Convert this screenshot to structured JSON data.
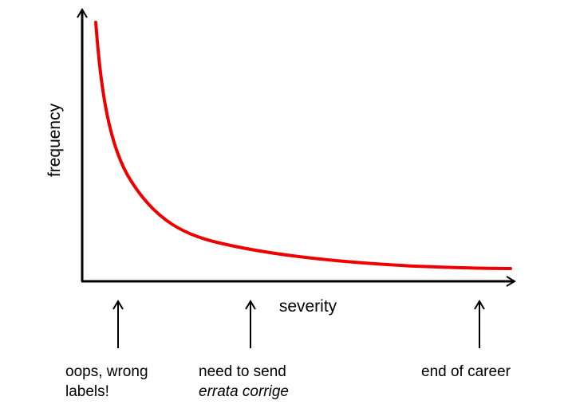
{
  "axes": {
    "y_label": "frequency",
    "x_label": "severity"
  },
  "curve": {
    "color": "#ee0000",
    "shape": "decreasing-long-tail"
  },
  "axis_color": "#000000",
  "annotations": [
    {
      "line1": "oops, wrong",
      "line2": "labels!"
    },
    {
      "line1": "need to send",
      "line2": "errata corrige"
    },
    {
      "line1": "end of career",
      "line2": ""
    }
  ]
}
